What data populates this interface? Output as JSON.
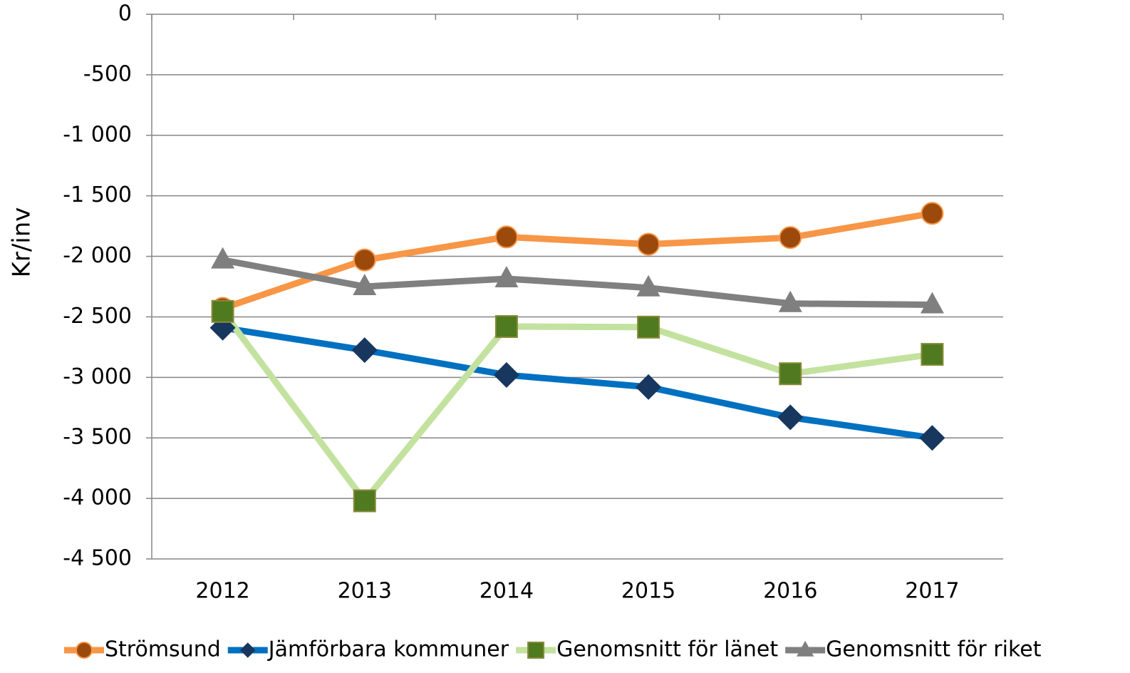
{
  "chart_data": {
    "type": "line",
    "y_label": "Kr/inv",
    "categories": [
      "2012",
      "2013",
      "2014",
      "2015",
      "2016",
      "2017"
    ],
    "series": [
      {
        "name": "Strömsund",
        "color": "#f79646",
        "marker": "circle",
        "marker_color": "#9c4a0c",
        "values": [
          -2430,
          -2030,
          -1840,
          -1900,
          -1845,
          -1645
        ]
      },
      {
        "name": "Jämförbara kommuner",
        "color": "#0070c0",
        "marker": "diamond",
        "marker_color": "#17375e",
        "values": [
          -2590,
          -2775,
          -2980,
          -3080,
          -3330,
          -3500
        ]
      },
      {
        "name": "Genomsnitt för länet",
        "color": "#c3e29f",
        "marker": "square",
        "marker_color": "#4f7a1f",
        "values": [
          -2455,
          -4020,
          -2580,
          -2585,
          -2970,
          -2810
        ]
      },
      {
        "name": "Genomsnitt för riket",
        "color": "#808080",
        "marker": "triangle",
        "marker_color": "#7f7f7f",
        "values": [
          -2030,
          -2250,
          -2185,
          -2260,
          -2390,
          -2400
        ]
      }
    ],
    "ylim": [
      -4500,
      0
    ],
    "yticks": [
      0,
      -500,
      {
        "value": -1000,
        "label": "-1 000"
      },
      {
        "value": -1500,
        "label": "-1 500"
      },
      {
        "value": -2000,
        "label": "-2 000"
      },
      {
        "value": -2500,
        "label": "-2 500"
      },
      {
        "value": -3000,
        "label": "-3 000"
      },
      {
        "value": -3500,
        "label": "-3 500"
      },
      {
        "value": -4000,
        "label": "-4 000"
      },
      {
        "value": -4500,
        "label": "-4 500"
      }
    ],
    "grid": true,
    "legend": "bottom"
  }
}
